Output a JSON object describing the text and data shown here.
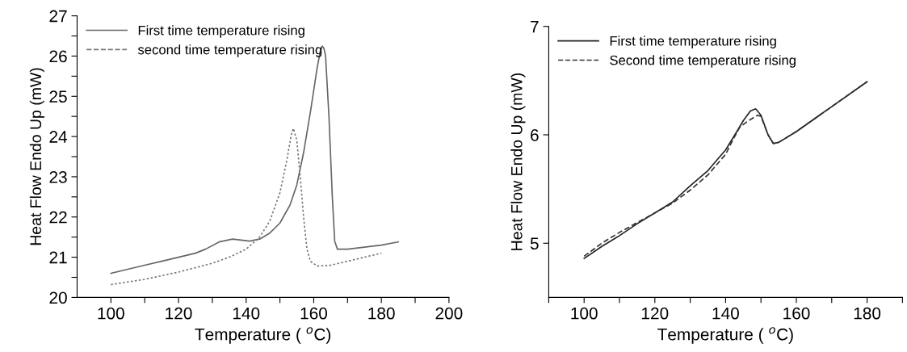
{
  "chart_data": [
    {
      "type": "line",
      "xlabel": "Temperature ( $^{o}$C)",
      "ylabel": "Heat Flow Endo Up (mW)",
      "xlim": [
        90,
        200
      ],
      "ylim": [
        20,
        27
      ],
      "xticks": [
        100,
        {
          "value": 110,
          "label": null
        },
        120,
        {
          "value": 130,
          "label": null
        },
        140,
        {
          "value": 150,
          "label": null
        },
        160,
        {
          "value": 170,
          "label": null
        },
        180,
        {
          "value": 190,
          "label": null
        },
        200
      ],
      "yticks": [
        20,
        {
          "value": 20.5,
          "label": null
        },
        21,
        {
          "value": 21.5,
          "label": null
        },
        22,
        {
          "value": 22.5,
          "label": null
        },
        23,
        {
          "value": 23.5,
          "label": null
        },
        24,
        {
          "value": 24.5,
          "label": null
        },
        25,
        {
          "value": 25.5,
          "label": null
        },
        26,
        {
          "value": 26.5,
          "label": null
        },
        27
      ],
      "legend": "top left",
      "grid": false,
      "marker": "none",
      "series": [
        {
          "name": "First time temperature rising",
          "color": "#666666",
          "line_style": "solid",
          "x": [
            100,
            105,
            110,
            115,
            120,
            125,
            128,
            132,
            136,
            138,
            141,
            144,
            147,
            150,
            153,
            155,
            157,
            159,
            161,
            162,
            162.5,
            163,
            163.5,
            164.5,
            165.5,
            166.2,
            167,
            170,
            175,
            180,
            185
          ],
          "values": [
            20.6,
            20.7,
            20.8,
            20.9,
            21.0,
            21.1,
            21.2,
            21.38,
            21.45,
            21.43,
            21.4,
            21.45,
            21.6,
            21.85,
            22.3,
            22.8,
            23.6,
            24.6,
            25.7,
            26.15,
            26.25,
            26.2,
            26.0,
            24.5,
            22.5,
            21.4,
            21.2,
            21.2,
            21.25,
            21.3,
            21.38
          ]
        },
        {
          "name": "second time temperature rising",
          "color": "#777777",
          "line_style": "dotted",
          "x": [
            100,
            110,
            120,
            130,
            135,
            140,
            144,
            147,
            150,
            152,
            153.5,
            154,
            155,
            156,
            157,
            158,
            159,
            161,
            165,
            170,
            175,
            180
          ],
          "values": [
            20.32,
            20.45,
            20.63,
            20.85,
            21.0,
            21.2,
            21.5,
            21.9,
            22.6,
            23.4,
            24.1,
            24.2,
            23.9,
            23.0,
            22.0,
            21.2,
            20.9,
            20.78,
            20.8,
            20.9,
            21.0,
            21.1
          ]
        }
      ]
    },
    {
      "type": "line",
      "xlabel": "Temperature ( $^{o}$C)",
      "ylabel": "Heat Flow Endo Up (mW)",
      "xlim": [
        90,
        190
      ],
      "ylim": [
        4.5,
        7
      ],
      "xticks": [
        {
          "value": 90,
          "label": null
        },
        100,
        {
          "value": 110,
          "label": null
        },
        120,
        {
          "value": 130,
          "label": null
        },
        140,
        {
          "value": 150,
          "label": null
        },
        160,
        {
          "value": 170,
          "label": null
        },
        180,
        {
          "value": 190,
          "label": null
        }
      ],
      "yticks": [
        5,
        6,
        7
      ],
      "legend": "top left",
      "grid": false,
      "marker": "none",
      "series": [
        {
          "name": "First time temperature rising",
          "color": "#222222",
          "line_style": "solid",
          "x": [
            100,
            105,
            110,
            115,
            120,
            125,
            130,
            135,
            140,
            143,
            145,
            147,
            148.5,
            150,
            152,
            153.5,
            155,
            160,
            170,
            180
          ],
          "values": [
            4.86,
            4.97,
            5.07,
            5.18,
            5.28,
            5.38,
            5.53,
            5.67,
            5.86,
            6.02,
            6.13,
            6.22,
            6.24,
            6.18,
            6.0,
            5.92,
            5.93,
            6.03,
            6.26,
            6.49
          ]
        },
        {
          "name": "Second time temperature rising",
          "color": "#333333",
          "line_style": "dashed",
          "x": [
            100,
            105,
            110,
            115,
            120,
            125,
            130,
            135,
            140,
            142,
            144,
            146,
            149,
            150,
            152,
            153.5,
            155,
            160,
            170,
            180
          ],
          "values": [
            4.88,
            5.0,
            5.1,
            5.19,
            5.28,
            5.37,
            5.49,
            5.63,
            5.82,
            5.95,
            6.07,
            6.12,
            6.18,
            6.17,
            6.0,
            5.92,
            5.93,
            6.03,
            6.26,
            6.49
          ]
        }
      ]
    }
  ]
}
